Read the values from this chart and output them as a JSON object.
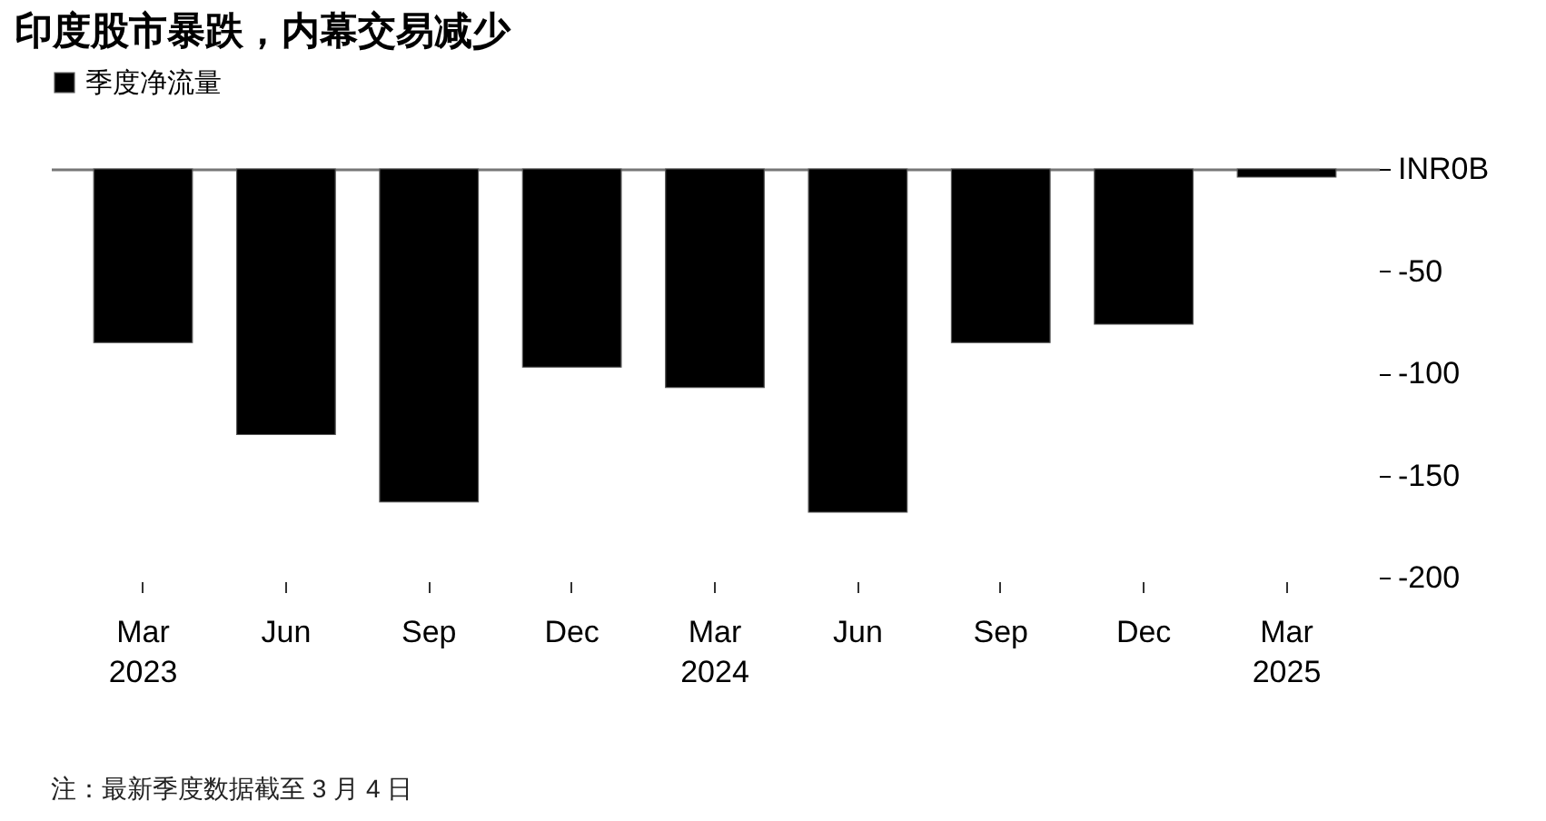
{
  "chart_data": {
    "type": "bar",
    "title": "印度股市暴跌，内幕交易减少",
    "categories": [
      "Mar\n2023",
      "Jun",
      "Sep",
      "Dec",
      "Mar\n2024",
      "Jun",
      "Sep",
      "Dec",
      "Mar\n2025"
    ],
    "series": [
      {
        "name": "季度净流量",
        "color": "#000000",
        "values": [
          -85,
          -130,
          -163,
          -97,
          -107,
          -168,
          -85,
          -76,
          -4
        ]
      }
    ],
    "ylim": [
      -200,
      0
    ],
    "yticks": [
      {
        "value": 0,
        "label": "INR0B"
      },
      -50,
      -100,
      -150,
      -200
    ],
    "grid": false,
    "legend": "top left",
    "annotations": [
      "注：最新季度数据截至 3 月 4 日"
    ]
  }
}
